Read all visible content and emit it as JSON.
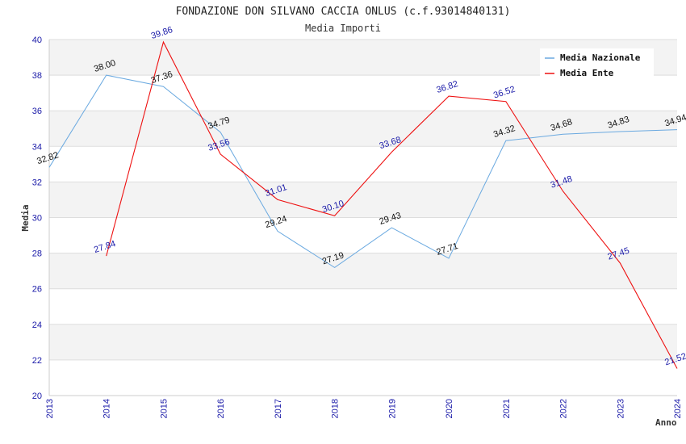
{
  "chart_data": {
    "type": "line",
    "title": "FONDAZIONE DON SILVANO CACCIA ONLUS (c.f.93014840131)",
    "subtitle": "Media Importi",
    "xlabel": "Anno",
    "ylabel": "Media",
    "ylim": [
      20,
      40
    ],
    "yticks": [
      20,
      22,
      24,
      26,
      28,
      30,
      32,
      34,
      36,
      38,
      40
    ],
    "x": [
      "2013",
      "2014",
      "2015",
      "2016",
      "2017",
      "2018",
      "2019",
      "2020",
      "2021",
      "2022",
      "2023",
      "2024"
    ],
    "grid": true,
    "legend_position": "top-right",
    "series": [
      {
        "name": "Media Nazionale",
        "color": "#6aa9e0",
        "label_color": "#111111",
        "values": [
          32.82,
          38.0,
          37.36,
          34.79,
          29.24,
          27.19,
          29.43,
          27.71,
          34.32,
          34.68,
          34.83,
          34.94
        ],
        "labels": [
          "32.82",
          "38.00",
          "37.36",
          "34.79",
          "29.24",
          "27.19",
          "29.43",
          "27.71",
          "34.32",
          "34.68",
          "34.83",
          "34.94"
        ]
      },
      {
        "name": "Media Ente",
        "color": "#ee1111",
        "label_color": "#1a1aa8",
        "values": [
          null,
          27.84,
          39.86,
          33.56,
          31.01,
          30.1,
          33.68,
          36.82,
          36.52,
          31.48,
          27.45,
          21.52
        ],
        "labels": [
          null,
          "27.84",
          "39.86",
          "33.56",
          "31.01",
          "30.10",
          "33.68",
          "36.82",
          "36.52",
          "31.48",
          "27.45",
          "21.52"
        ]
      }
    ]
  }
}
